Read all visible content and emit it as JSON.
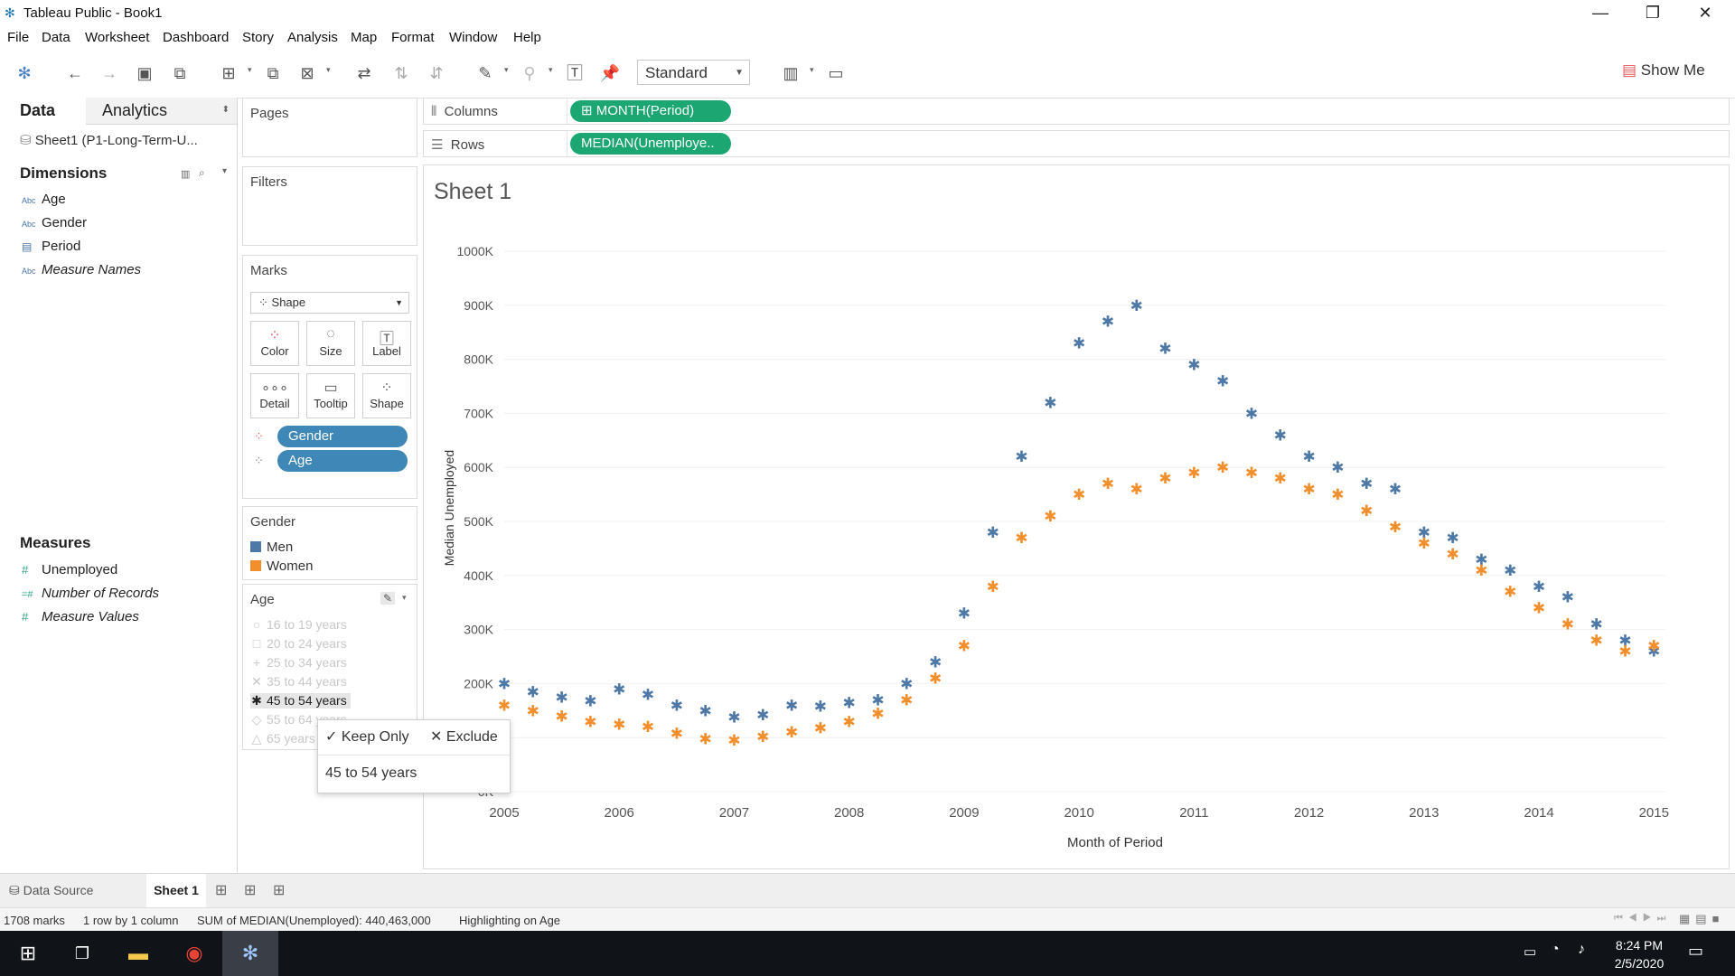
{
  "window": {
    "title": "Tableau Public - Book1",
    "minimize": "—",
    "restore": "❐",
    "close": "✕"
  },
  "menu": [
    "File",
    "Data",
    "Worksheet",
    "Dashboard",
    "Story",
    "Analysis",
    "Map",
    "Format",
    "Window",
    "Help"
  ],
  "toolbar": {
    "view_mode": "Standard",
    "show_me": "Show Me"
  },
  "data_pane": {
    "tab_data": "Data",
    "tab_analytics": "Analytics",
    "datasource": "Sheet1 (P1-Long-Term-U...",
    "dimensions_title": "Dimensions",
    "dimensions": [
      {
        "icon": "Abc",
        "label": "Age"
      },
      {
        "icon": "Abc",
        "label": "Gender"
      },
      {
        "icon": "▤",
        "label": "Period"
      },
      {
        "icon": "Abc",
        "label": "Measure Names"
      }
    ],
    "measures_title": "Measures",
    "measures": [
      {
        "icon": "#",
        "label": "Unemployed"
      },
      {
        "icon": "=#",
        "label": "Number of Records"
      },
      {
        "icon": "#",
        "label": "Measure Values"
      }
    ]
  },
  "cards": {
    "pages": "Pages",
    "filters": "Filters",
    "marks": "Marks",
    "mark_type": "Shape",
    "mark_buttons": [
      "Color",
      "Size",
      "Label",
      "Detail",
      "Tooltip",
      "Shape"
    ],
    "mark_pills": [
      "Gender",
      "Age"
    ]
  },
  "gender_legend": {
    "title": "Gender",
    "items": [
      {
        "label": "Men",
        "color": "#4e79a7"
      },
      {
        "label": "Women",
        "color": "#f28e2b"
      }
    ]
  },
  "age_legend": {
    "title": "Age",
    "items": [
      {
        "shape": "○",
        "label": "16 to 19 years"
      },
      {
        "shape": "□",
        "label": "20 to 24 years"
      },
      {
        "shape": "+",
        "label": "25 to 34 years"
      },
      {
        "shape": "✕",
        "label": "35 to 44 years"
      },
      {
        "shape": "✱",
        "label": "45 to 54 years"
      },
      {
        "shape": "◇",
        "label": "55 to 64 years"
      },
      {
        "shape": "△",
        "label": "65 years"
      }
    ],
    "selected_index": 4
  },
  "tooltip": {
    "keep_only": "Keep Only",
    "exclude": "Exclude",
    "value": "45 to 54 years"
  },
  "shelves": {
    "columns_label": "Columns",
    "columns_pill": "MONTH(Period)",
    "rows_label": "Rows",
    "rows_pill": "MEDIAN(Unemploye.."
  },
  "sheet_title": "Sheet 1",
  "chart_data": {
    "type": "scatter",
    "xlabel": "Month of Period",
    "ylabel": "Median Unemployed",
    "x_ticks": [
      "2005",
      "2006",
      "2007",
      "2008",
      "2009",
      "2010",
      "2011",
      "2012",
      "2013",
      "2014",
      "2015"
    ],
    "y_ticks": [
      "0K",
      "100K",
      "200K",
      "300K",
      "400K",
      "500K",
      "600K",
      "700K",
      "800K",
      "900K",
      "1000K"
    ],
    "xlim": [
      2005,
      2015.1
    ],
    "ylim": [
      0,
      1000000
    ],
    "series": [
      {
        "name": "Men, 45 to 54 years",
        "color": "#4e79a7",
        "shape": "✱",
        "x": [
          2005,
          2005.25,
          2005.5,
          2005.75,
          2006,
          2006.25,
          2006.5,
          2006.75,
          2007,
          2007.25,
          2007.5,
          2007.75,
          2008,
          2008.25,
          2008.5,
          2008.75,
          2009,
          2009.25,
          2009.5,
          2009.75,
          2010,
          2010.25,
          2010.5,
          2010.75,
          2011,
          2011.25,
          2011.5,
          2011.75,
          2012,
          2012.25,
          2012.5,
          2012.75,
          2013,
          2013.25,
          2013.5,
          2013.75,
          2014,
          2014.25,
          2014.5,
          2014.75,
          2015
        ],
        "y": [
          200000,
          185000,
          175000,
          168000,
          190000,
          180000,
          160000,
          150000,
          138000,
          142000,
          160000,
          158000,
          165000,
          170000,
          200000,
          240000,
          330000,
          480000,
          620000,
          720000,
          830000,
          870000,
          900000,
          820000,
          790000,
          760000,
          700000,
          660000,
          620000,
          600000,
          570000,
          560000,
          480000,
          470000,
          430000,
          410000,
          380000,
          360000,
          310000,
          280000,
          260000
        ]
      },
      {
        "name": "Women, 45 to 54 years",
        "color": "#f28e2b",
        "shape": "✱",
        "x": [
          2005,
          2005.25,
          2005.5,
          2005.75,
          2006,
          2006.25,
          2006.5,
          2006.75,
          2007,
          2007.25,
          2007.5,
          2007.75,
          2008,
          2008.25,
          2008.5,
          2008.75,
          2009,
          2009.25,
          2009.5,
          2009.75,
          2010,
          2010.25,
          2010.5,
          2010.75,
          2011,
          2011.25,
          2011.5,
          2011.75,
          2012,
          2012.25,
          2012.5,
          2012.75,
          2013,
          2013.25,
          2013.5,
          2013.75,
          2014,
          2014.25,
          2014.5,
          2014.75,
          2015
        ],
        "y": [
          160000,
          150000,
          140000,
          130000,
          125000,
          120000,
          108000,
          98000,
          95000,
          102000,
          110000,
          118000,
          130000,
          145000,
          170000,
          210000,
          270000,
          380000,
          470000,
          510000,
          550000,
          570000,
          560000,
          580000,
          590000,
          600000,
          590000,
          580000,
          560000,
          550000,
          520000,
          490000,
          460000,
          440000,
          410000,
          370000,
          340000,
          310000,
          280000,
          260000,
          270000
        ]
      }
    ]
  },
  "bottom_tabs": {
    "data_source": "Data Source",
    "sheet1": "Sheet 1"
  },
  "status": {
    "marks": "1708 marks",
    "dims": "1 row by 1 column",
    "sum": "SUM of MEDIAN(Unemployed): 440,463,000",
    "highlight": "Highlighting on Age"
  },
  "taskbar": {
    "time": "8:24 PM",
    "date": "2/5/2020"
  }
}
